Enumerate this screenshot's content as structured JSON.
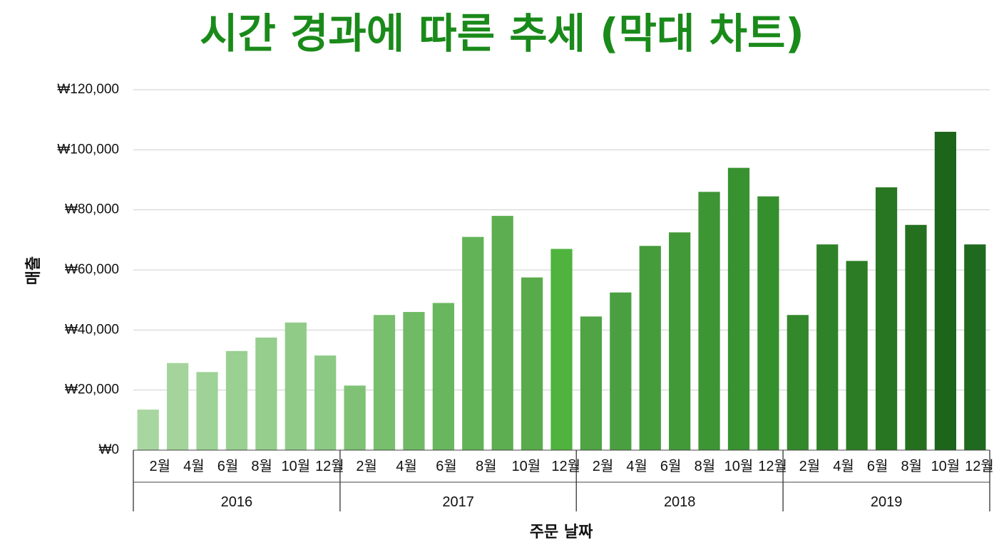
{
  "chart_data": {
    "type": "bar",
    "title": "시간 경과에 따른 추세 (막대 차트)",
    "xlabel": "주문 날짜",
    "ylabel": "매출",
    "ylim": [
      0,
      120000
    ],
    "yticks": [
      0,
      20000,
      40000,
      60000,
      80000,
      100000,
      120000
    ],
    "ytick_labels": [
      "₩0",
      "₩20,000",
      "₩40,000",
      "₩60,000",
      "₩80,000",
      "₩100,000",
      "₩120,000"
    ],
    "grid": true,
    "legend": "none",
    "month_labels": [
      "2월",
      "4월",
      "6월",
      "8월",
      "10월",
      "12월"
    ],
    "years": [
      {
        "year": "2016",
        "values": [
          13500,
          29000,
          26000,
          33000,
          37500,
          42500,
          31500
        ],
        "colors": [
          "#a8d6a0",
          "#a4d49b",
          "#9fd297",
          "#9ad092",
          "#95ce8d",
          "#90cb88",
          "#8bc984"
        ]
      },
      {
        "year": "2017",
        "values": [
          21500,
          45000,
          46000,
          49000,
          71000,
          78000,
          57500,
          67000
        ],
        "colors": [
          "#7fc275",
          "#77be6d",
          "#70ba65",
          "#68b65d",
          "#62b257",
          "#5dae50",
          "#58ab4a",
          "#4fb33e"
        ]
      },
      {
        "year": "2018",
        "values": [
          44500,
          52500,
          68000,
          72500,
          86000,
          94000,
          84500
        ],
        "colors": [
          "#4fa444",
          "#4aa040",
          "#459c3b",
          "#419937",
          "#3d9533",
          "#399230",
          "#368f2d"
        ]
      },
      {
        "year": "2019",
        "values": [
          45000,
          68500,
          63000,
          87500,
          75000,
          106000,
          68500
        ],
        "colors": [
          "#33882b",
          "#2f8228",
          "#2b7c25",
          "#287622",
          "#24701f",
          "#1d651b",
          "#1f6a1e"
        ]
      }
    ],
    "title_color": "#1a8a1a"
  }
}
